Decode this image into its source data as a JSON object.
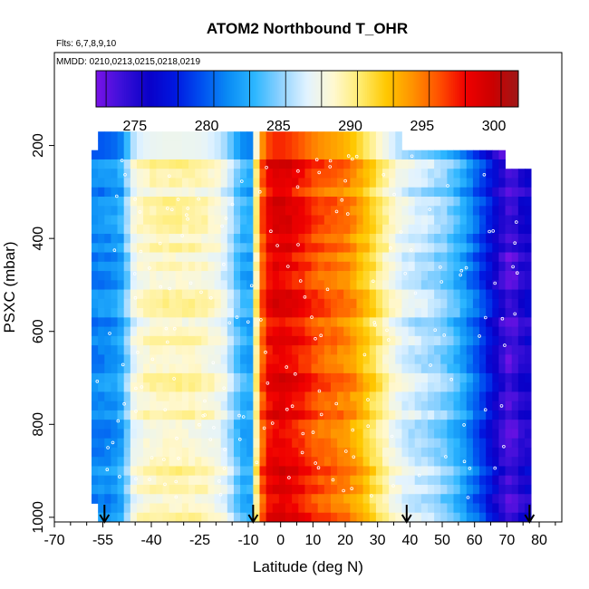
{
  "chart_data": {
    "type": "heatmap",
    "title": "ATOM2 Northbound T_OHR",
    "flights_note": "Flts: 6,7,8,9,10",
    "dates_note": "MMDD: 0210,0213,0215,0218,0219",
    "xlabel": "Latitude (deg N)",
    "ylabel": "PSXC (mbar)",
    "xlim": [
      -70,
      87
    ],
    "ylim": [
      1010,
      0
    ],
    "x_ticks": [
      -70,
      -55,
      -40,
      -25,
      -10,
      0,
      10,
      20,
      30,
      40,
      50,
      60,
      70,
      80
    ],
    "y_ticks": [
      200,
      400,
      600,
      800,
      1000
    ],
    "colorbar": {
      "min": 272.3,
      "max": 301.7,
      "ticks": [
        275,
        280,
        285,
        290,
        295,
        300
      ],
      "colors": [
        "#7a12e8",
        "#3a10d8",
        "#0a00c8",
        "#0018e0",
        "#0050f0",
        "#0a8cf5",
        "#2cb6ff",
        "#8fd2ff",
        "#e2f3ff",
        "#fff8d0",
        "#ffec70",
        "#ffc800",
        "#ff9200",
        "#ff5000",
        "#f00000",
        "#cc0000",
        "#a01818"
      ]
    },
    "arrow_latitudes": [
      -54.5,
      -8.5,
      39,
      77
    ],
    "profile": {
      "lat": [
        -57.5,
        -55.5,
        -53.5,
        -51.5,
        -49.5,
        -47.5,
        -45.5,
        -43.5,
        -41.5,
        -39.5,
        -37.5,
        -35.5,
        -33.5,
        -31.5,
        -29.5,
        -27.5,
        -25.5,
        -23.5,
        -21.5,
        -19.5,
        -17.5,
        -15.5,
        -13.5,
        -11.5,
        -9.5,
        -7.5,
        -5.5,
        -3.5,
        -1.5,
        0.5,
        2.5,
        4.5,
        6.5,
        8.5,
        10.5,
        12.5,
        14.5,
        16.5,
        18.5,
        20.5,
        22.5,
        24.5,
        26.5,
        28.5,
        30.5,
        32.5,
        34.5,
        36.5,
        38.5,
        40.5,
        42.5,
        44.5,
        46.5,
        48.5,
        50.5,
        52.5,
        54.5,
        56.5,
        58.5,
        60.5,
        62.5,
        64.5,
        66.5,
        68.5,
        70.5,
        72.5,
        74.5,
        76.5
      ],
      "temp_k": [
        281.3,
        281.4,
        281.6,
        281.9,
        282.6,
        285.0,
        287.5,
        288.4,
        288.8,
        289.0,
        289.1,
        289.2,
        289.2,
        289.2,
        289.1,
        289.1,
        289.0,
        288.8,
        288.4,
        288.0,
        287.2,
        285.9,
        284.2,
        283.0,
        282.7,
        290.0,
        296.0,
        298.0,
        298.6,
        298.6,
        298.3,
        297.9,
        297.4,
        296.8,
        296.3,
        295.9,
        295.6,
        295.3,
        295.0,
        294.6,
        294.0,
        293.2,
        292.3,
        291.4,
        290.4,
        289.4,
        288.4,
        287.6,
        287.0,
        286.6,
        286.3,
        286.0,
        285.7,
        285.3,
        284.8,
        284.1,
        283.3,
        282.3,
        281.2,
        280.0,
        278.8,
        277.4,
        276.0,
        274.7,
        273.6,
        274.0,
        275.0,
        275.5
      ]
    }
  }
}
